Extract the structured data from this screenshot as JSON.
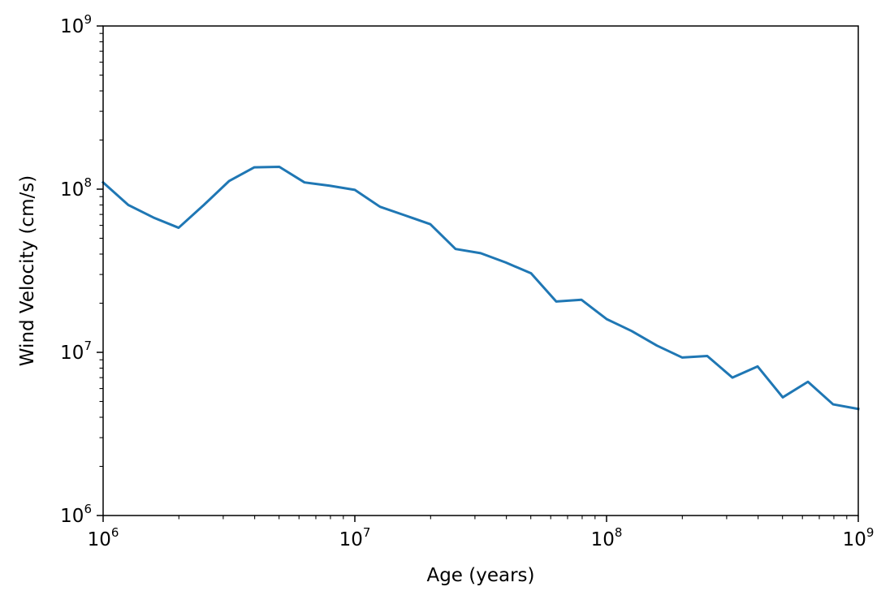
{
  "chart_data": {
    "type": "line",
    "title": "",
    "xlabel": "Age (years)",
    "ylabel": "Wind Velocity (cm/s)",
    "xscale": "log",
    "yscale": "log",
    "xlim": [
      1000000,
      1000000000
    ],
    "ylim": [
      1000000,
      1000000000
    ],
    "grid": false,
    "x_ticks": [
      {
        "value": 1000000,
        "base": "10",
        "exp": "6"
      },
      {
        "value": 10000000,
        "base": "10",
        "exp": "7"
      },
      {
        "value": 100000000,
        "base": "10",
        "exp": "8"
      },
      {
        "value": 1000000000,
        "base": "10",
        "exp": "9"
      }
    ],
    "y_ticks": [
      {
        "value": 1000000,
        "base": "10",
        "exp": "6"
      },
      {
        "value": 10000000,
        "base": "10",
        "exp": "7"
      },
      {
        "value": 100000000,
        "base": "10",
        "exp": "8"
      },
      {
        "value": 1000000000,
        "base": "10",
        "exp": "9"
      }
    ],
    "series": [
      {
        "name": "wind velocity",
        "color": "#1f77b4",
        "x": [
          1000000,
          1259000,
          1585000,
          1995000,
          2512000,
          3162000,
          3981000,
          5012000,
          6310000,
          7943000,
          10000000,
          12590000,
          15850000,
          19950000,
          25120000,
          31620000,
          39810000,
          50120000,
          63100000,
          79430000,
          100000000,
          125900000,
          158500000,
          199500000,
          251200000,
          316200000,
          398100000,
          501200000,
          631000000,
          794300000,
          1000000000
        ],
        "y": [
          110000000,
          80000000,
          67000000,
          58000000,
          80000000,
          112000000,
          136000000,
          137000000,
          110000000,
          105000000,
          99000000,
          78000000,
          69000000,
          61000000,
          43000000,
          40500000,
          35500000,
          30500000,
          20500000,
          21000000,
          16000000,
          13500000,
          11000000,
          9300000,
          9500000,
          7000000,
          8200000,
          5300000,
          6600000,
          4800000,
          4500000
        ]
      }
    ]
  }
}
